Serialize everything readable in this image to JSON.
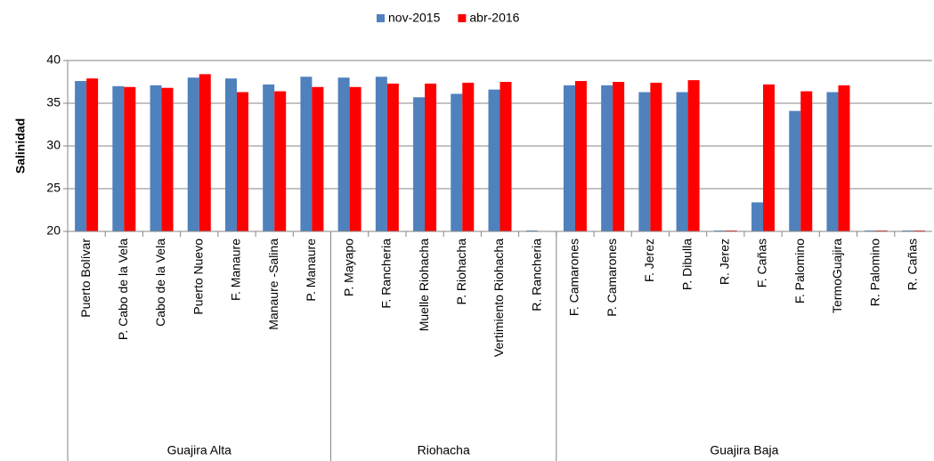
{
  "chart_data": {
    "type": "bar",
    "y_label": "Salinidad",
    "groups": [
      {
        "name": "Guajira Alta",
        "categories": [
          "Puerto Bolívar",
          "P. Cabo de la Vela",
          "Cabo de la Vela",
          "Puerto Nuevo",
          "F. Manaure",
          "Manaure -Salina",
          "P. Manaure"
        ]
      },
      {
        "name": "Riohacha",
        "categories": [
          "P. Mayapo",
          "F. Rancheria",
          "Muelle Riohacha",
          "P. Riohacha",
          "Vertimiento Riohacha",
          "R. Rancheria"
        ]
      },
      {
        "name": "Guajira Baja",
        "categories": [
          "F. Camarones",
          "P. Camarones",
          "F. Jerez",
          "P. Dibulla",
          "R. Jerez",
          "F. Cañas",
          "F. Palomino",
          "TermoGuajira",
          "R. Palomino",
          "R. Cañas"
        ]
      }
    ],
    "series": [
      {
        "name": "nov-2015",
        "color": "#4f81bd",
        "values": [
          37.6,
          37.0,
          37.1,
          38.0,
          37.9,
          37.2,
          38.1,
          38.0,
          38.1,
          35.7,
          36.1,
          36.6,
          20,
          37.1,
          37.1,
          36.3,
          36.3,
          20,
          23.4,
          34.1,
          36.3,
          20,
          20
        ]
      },
      {
        "name": "abr-2016",
        "color": "#ff0000",
        "values": [
          37.9,
          36.9,
          36.8,
          38.4,
          36.3,
          36.4,
          36.9,
          36.9,
          37.3,
          37.3,
          37.4,
          37.5,
          null,
          37.6,
          37.5,
          37.4,
          37.7,
          20,
          37.2,
          36.4,
          37.1,
          20,
          20
        ]
      }
    ],
    "ylim": [
      20,
      40
    ],
    "yticks": [
      20,
      25,
      30,
      35,
      40
    ],
    "grid": true,
    "legend": "top"
  }
}
